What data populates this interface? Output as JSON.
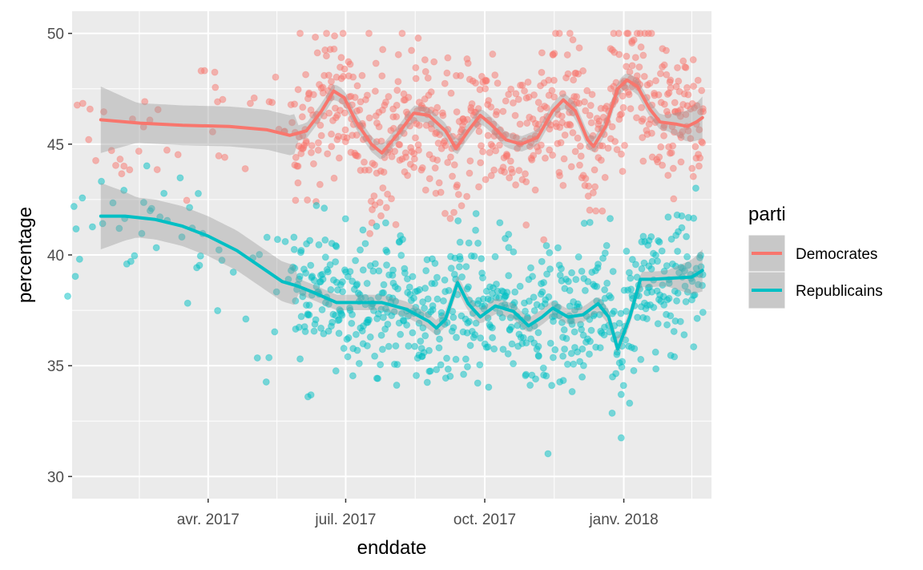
{
  "chart_data": {
    "type": "scatter",
    "xlabel": "enddate",
    "ylabel": "percentage",
    "x_tick_labels": [
      "avr. 2017",
      "juil. 2017",
      "oct. 2017",
      "janv. 2018"
    ],
    "x_ticks": [
      "2017-04-01",
      "2017-07-01",
      "2017-10-01",
      "2018-01-01"
    ],
    "x_range": [
      "2017-01-01",
      "2018-02-28"
    ],
    "ylim": [
      29,
      51
    ],
    "y_ticks": [
      30,
      35,
      40,
      45,
      50
    ],
    "grid": true,
    "smoother": "loess with confidence band",
    "legend": {
      "title": "parti",
      "position": "right",
      "entries": [
        "Democrates",
        "Republicains"
      ]
    },
    "series": [
      {
        "name": "Democrates",
        "color": "#F8766D",
        "smooth": [
          [
            "2017-01-20",
            46.1
          ],
          [
            "2017-02-15",
            45.95
          ],
          [
            "2017-03-15",
            45.85
          ],
          [
            "2017-04-15",
            45.8
          ],
          [
            "2017-05-10",
            45.65
          ],
          [
            "2017-05-25",
            45.4
          ],
          [
            "2017-06-05",
            45.6
          ],
          [
            "2017-06-15",
            46.5
          ],
          [
            "2017-06-23",
            47.4
          ],
          [
            "2017-06-30",
            47.1
          ],
          [
            "2017-07-08",
            46.0
          ],
          [
            "2017-07-18",
            45.0
          ],
          [
            "2017-07-25",
            44.6
          ],
          [
            "2017-08-05",
            45.5
          ],
          [
            "2017-08-15",
            46.4
          ],
          [
            "2017-08-25",
            46.3
          ],
          [
            "2017-09-05",
            45.6
          ],
          [
            "2017-09-12",
            44.8
          ],
          [
            "2017-09-20",
            45.6
          ],
          [
            "2017-09-28",
            46.3
          ],
          [
            "2017-10-05",
            45.9
          ],
          [
            "2017-10-15",
            45.2
          ],
          [
            "2017-10-25",
            45.0
          ],
          [
            "2017-11-05",
            45.3
          ],
          [
            "2017-11-15",
            46.5
          ],
          [
            "2017-11-22",
            47.0
          ],
          [
            "2017-11-30",
            46.5
          ],
          [
            "2017-12-08",
            45.2
          ],
          [
            "2017-12-12",
            44.9
          ],
          [
            "2017-12-20",
            45.8
          ],
          [
            "2017-12-28",
            47.5
          ],
          [
            "2018-01-03",
            47.9
          ],
          [
            "2018-01-10",
            47.6
          ],
          [
            "2018-01-18",
            46.6
          ],
          [
            "2018-01-25",
            46.0
          ],
          [
            "2018-02-05",
            45.9
          ],
          [
            "2018-02-12",
            45.8
          ],
          [
            "2018-02-18",
            46.0
          ],
          [
            "2018-02-22",
            46.2
          ]
        ]
      },
      {
        "name": "Republicains",
        "color": "#00BFC4",
        "smooth": [
          [
            "2017-01-20",
            41.75
          ],
          [
            "2017-02-05",
            41.75
          ],
          [
            "2017-02-25",
            41.6
          ],
          [
            "2017-03-15",
            41.3
          ],
          [
            "2017-04-01",
            40.85
          ],
          [
            "2017-04-20",
            40.2
          ],
          [
            "2017-05-05",
            39.5
          ],
          [
            "2017-05-20",
            38.8
          ],
          [
            "2017-05-30",
            38.6
          ],
          [
            "2017-06-10",
            38.3
          ],
          [
            "2017-06-25",
            37.85
          ],
          [
            "2017-07-10",
            37.85
          ],
          [
            "2017-07-25",
            37.85
          ],
          [
            "2017-08-10",
            37.55
          ],
          [
            "2017-08-25",
            37.0
          ],
          [
            "2017-08-30",
            36.7
          ],
          [
            "2017-09-05",
            37.1
          ],
          [
            "2017-09-13",
            38.75
          ],
          [
            "2017-09-20",
            37.8
          ],
          [
            "2017-09-28",
            37.2
          ],
          [
            "2017-10-08",
            37.7
          ],
          [
            "2017-10-20",
            37.45
          ],
          [
            "2017-10-30",
            36.8
          ],
          [
            "2017-11-08",
            37.2
          ],
          [
            "2017-11-15",
            37.6
          ],
          [
            "2017-11-25",
            37.2
          ],
          [
            "2017-12-05",
            37.3
          ],
          [
            "2017-12-15",
            37.8
          ],
          [
            "2017-12-22",
            37.2
          ],
          [
            "2017-12-28",
            35.75
          ],
          [
            "2018-01-05",
            37.2
          ],
          [
            "2018-01-12",
            38.9
          ],
          [
            "2018-01-20",
            38.9
          ],
          [
            "2018-02-01",
            38.95
          ],
          [
            "2018-02-15",
            39.0
          ],
          [
            "2018-02-22",
            39.3
          ]
        ]
      }
    ]
  }
}
